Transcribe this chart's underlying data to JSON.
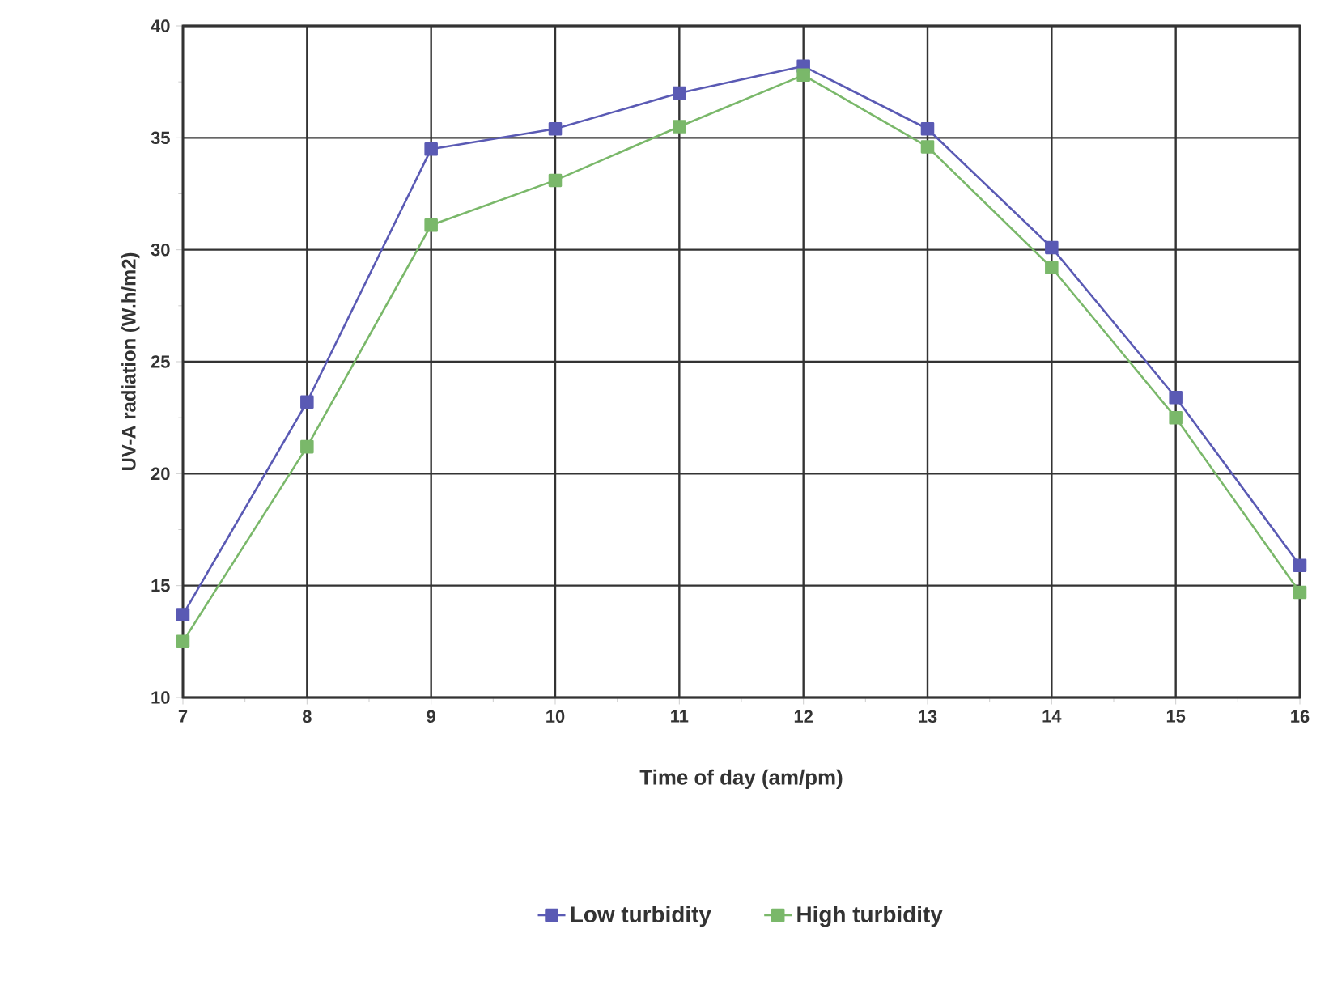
{
  "chart_data": {
    "type": "line",
    "xlabel": "Time of day (am/pm)",
    "ylabel": "UV-A radiation (W.h/m2)",
    "x": [
      7,
      8,
      9,
      10,
      11,
      12,
      13,
      14,
      15,
      16
    ],
    "series": [
      {
        "name": "Low turbidity",
        "color": "#5a5ab4",
        "values": [
          13.7,
          23.2,
          34.5,
          35.4,
          37.0,
          38.2,
          35.4,
          30.1,
          23.4,
          15.9
        ]
      },
      {
        "name": "High turbidity",
        "color": "#7ab86a",
        "values": [
          12.5,
          21.2,
          31.1,
          33.1,
          35.5,
          37.8,
          34.6,
          29.2,
          22.5,
          14.7
        ]
      }
    ],
    "xlim": [
      7,
      16
    ],
    "ylim": [
      10,
      40
    ],
    "xticks": [
      7,
      8,
      9,
      10,
      11,
      12,
      13,
      14,
      15,
      16
    ],
    "yticks": [
      10,
      15,
      20,
      25,
      30,
      35,
      40
    ],
    "grid": true,
    "legend": "bottom",
    "marker": "square",
    "line_style": "solid"
  }
}
